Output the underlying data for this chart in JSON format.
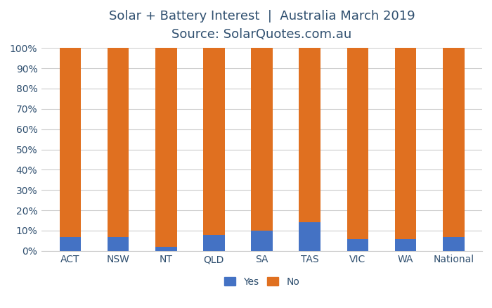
{
  "categories": [
    "ACT",
    "NSW",
    "NT",
    "QLD",
    "SA",
    "TAS",
    "VIC",
    "WA",
    "National"
  ],
  "yes_values": [
    7,
    7,
    2,
    8,
    10,
    14,
    6,
    6,
    7
  ],
  "no_values": [
    93,
    93,
    98,
    92,
    90,
    86,
    94,
    94,
    93
  ],
  "yes_color": "#4472C4",
  "no_color": "#E07020",
  "title_line1": "Solar + Battery Interest  |  Australia March 2019",
  "title_line2": "Source: SolarQuotes.com.au",
  "title_fontsize": 13,
  "subtitle_fontsize": 12,
  "ylim": [
    0,
    100
  ],
  "ytick_labels": [
    "0%",
    "10%",
    "20%",
    "30%",
    "40%",
    "50%",
    "60%",
    "70%",
    "80%",
    "90%",
    "100%"
  ],
  "ytick_values": [
    0,
    10,
    20,
    30,
    40,
    50,
    60,
    70,
    80,
    90,
    100
  ],
  "legend_labels": [
    "Yes",
    "No"
  ],
  "background_color": "#ffffff",
  "grid_color": "#cccccc",
  "bar_width": 0.45,
  "tick_label_fontsize": 10,
  "legend_fontsize": 10,
  "title_color": "#2F4F6F"
}
